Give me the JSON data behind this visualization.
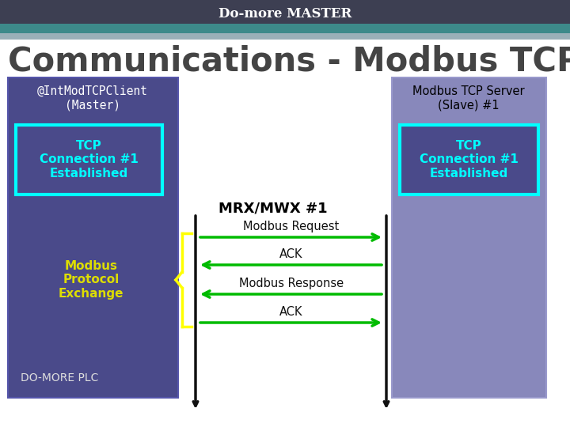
{
  "title_bar": "Do-more MASTER",
  "title_bar_bg": "#3d3f52",
  "title_bar_color": "#ffffff",
  "main_title": "Communications - Modbus TCP",
  "main_title_color": "#444444",
  "bg_color": "#ffffff",
  "header_stripe_color": "#3d8a8a",
  "header_stripe2_color": "#9ab0b8",
  "left_box_color": "#4a4a8a",
  "left_box_edge": "#5555aa",
  "right_box_color": "#8888bb",
  "right_box_edge": "#9999cc",
  "tcp_box_fill": "#4a4a8a",
  "tcp_box_border": "#00ffff",
  "tcp_text_color": "#00ffff",
  "left_label": "@IntModTCPClient\n(Master)",
  "right_label": "Modbus TCP Server\n(Slave) #1",
  "tcp_label": "TCP\nConnection #1\nEstablished",
  "mrx_label": "MRX/MWX #1",
  "modbus_exchange_label": "Modbus\nProtocol\nExchange",
  "modbus_exchange_color": "#dddd00",
  "do_more_plc_label": "DO-MORE PLC",
  "do_more_plc_color": "#dddddd",
  "arrow_color": "#00bb00",
  "line_color": "#111111",
  "msg1": "Modbus Request",
  "msg2": "ACK",
  "msg3": "Modbus Response",
  "msg4": "ACK",
  "msg_color": "#111111"
}
